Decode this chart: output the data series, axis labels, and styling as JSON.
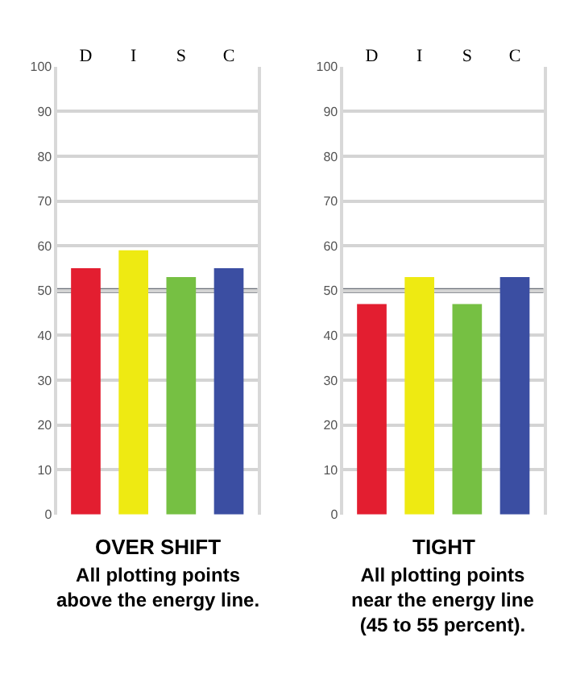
{
  "chart_data": [
    {
      "type": "bar",
      "title": "OVER SHIFT",
      "subtitle": "All plotting points\nabove the energy line.",
      "categories": [
        "D",
        "I",
        "S",
        "C"
      ],
      "values": [
        55,
        59,
        53,
        55
      ],
      "colors": [
        "#e31e30",
        "#eeea12",
        "#76c043",
        "#3b4ea2"
      ],
      "ylim": [
        0,
        100
      ],
      "yticks": [
        0,
        10,
        20,
        30,
        40,
        50,
        60,
        70,
        80,
        90,
        100
      ],
      "grid": "y",
      "ref_lines": [
        {
          "axis": "y",
          "value": 50,
          "color": "#6b7079"
        }
      ]
    },
    {
      "type": "bar",
      "title": "TIGHT",
      "subtitle": "All plotting points\nnear the energy line\n(45 to 55 percent).",
      "categories": [
        "D",
        "I",
        "S",
        "C"
      ],
      "values": [
        47,
        53,
        47,
        53
      ],
      "colors": [
        "#e31e30",
        "#eeea12",
        "#76c043",
        "#3b4ea2"
      ],
      "ylim": [
        0,
        100
      ],
      "yticks": [
        0,
        10,
        20,
        30,
        40,
        50,
        60,
        70,
        80,
        90,
        100
      ],
      "grid": "y",
      "ref_lines": [
        {
          "axis": "y",
          "value": 50,
          "color": "#6b7079"
        }
      ]
    }
  ]
}
